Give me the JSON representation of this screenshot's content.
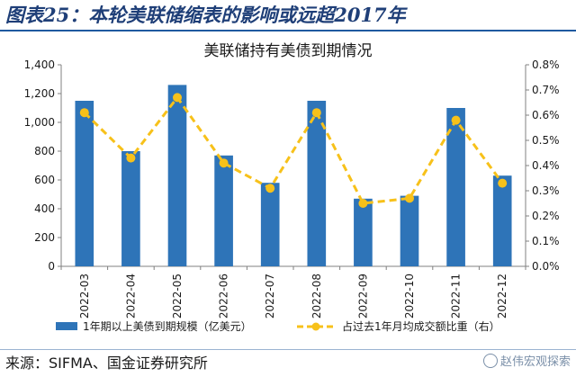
{
  "figure": {
    "title": "图表25：本轮美联储缩表的影响或远超2017年",
    "source": "来源：SIFMA、国金证券研究所",
    "watermark": "赵伟宏观探索"
  },
  "chart_data": {
    "type": "bar",
    "title": "美联储持有美债到期情况",
    "categories": [
      "2022-03",
      "2022-04",
      "2022-05",
      "2022-06",
      "2022-07",
      "2022-08",
      "2022-09",
      "2022-10",
      "2022-11",
      "2022-12"
    ],
    "series": [
      {
        "name": "1年期以上美债到期规模（亿美元）",
        "type": "bar",
        "axis": "left",
        "color": "#2e74b8",
        "values": [
          1150,
          800,
          1260,
          770,
          580,
          1150,
          470,
          490,
          1100,
          630
        ]
      },
      {
        "name": "占过去1年月均成交额比重（右）",
        "type": "line",
        "axis": "right",
        "style": "dashed",
        "color": "#f7c11a",
        "values": [
          0.0061,
          0.0043,
          0.0067,
          0.0041,
          0.0031,
          0.0061,
          0.0025,
          0.0027,
          0.0058,
          0.0033
        ]
      }
    ],
    "left_axis": {
      "ylim": [
        0,
        1400
      ],
      "ticks": [
        0,
        200,
        400,
        600,
        800,
        1000,
        1200,
        1400
      ],
      "tick_labels": [
        "0",
        "200",
        "400",
        "600",
        "800",
        "1,000",
        "1,200",
        "1,400"
      ]
    },
    "right_axis": {
      "ylim": [
        0,
        0.008
      ],
      "ticks": [
        0,
        0.001,
        0.002,
        0.003,
        0.004,
        0.005,
        0.006,
        0.007,
        0.008
      ],
      "tick_labels": [
        "0.0%",
        "0.1%",
        "0.2%",
        "0.3%",
        "0.4%",
        "0.5%",
        "0.6%",
        "0.7%",
        "0.8%"
      ]
    },
    "grid": false,
    "legend_position": "bottom"
  }
}
